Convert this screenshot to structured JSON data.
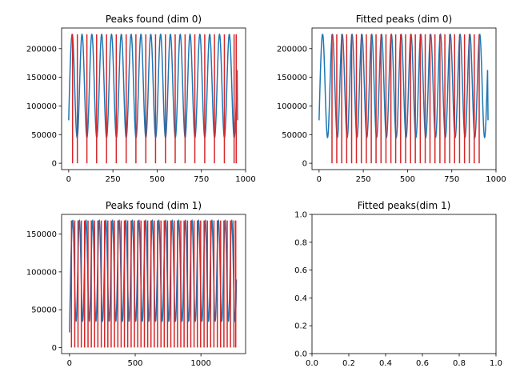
{
  "chart_data": [
    {
      "type": "line",
      "title": "Peaks found (dim 0)",
      "xlim": [
        -40,
        1000
      ],
      "ylim": [
        -11000,
        236000
      ],
      "xticks": [
        0,
        250,
        500,
        750,
        1000
      ],
      "xtick_labels": [
        "0",
        "250",
        "500",
        "750",
        "1000"
      ],
      "yticks": [
        0,
        50000,
        100000,
        150000,
        200000
      ],
      "ytick_labels": [
        "0",
        "50000",
        "100000",
        "150000",
        "200000"
      ],
      "signal": {
        "name": "signal",
        "color": "#1f77b4",
        "x_start": 0,
        "x_end": 955,
        "y_min": 45000,
        "y_max": 225000,
        "y_start": 75000,
        "y_end": 75000,
        "period": 55.5,
        "phase": 20
      },
      "peaks": {
        "name": "peaks",
        "color": "#d62728",
        "x": [
          22,
          49,
          103,
          158,
          214,
          269,
          325,
          380,
          436,
          491,
          547,
          602,
          658,
          713,
          769,
          824,
          880,
          935,
          947
        ],
        "y_top": 225000,
        "y_bottom": 0
      }
    },
    {
      "type": "line",
      "title": "Fitted peaks (dim 0)",
      "xlim": [
        -40,
        1000
      ],
      "ylim": [
        -11000,
        236000
      ],
      "xticks": [
        0,
        250,
        500,
        750,
        1000
      ],
      "xtick_labels": [
        "0",
        "250",
        "500",
        "750",
        "1000"
      ],
      "yticks": [
        0,
        50000,
        100000,
        150000,
        200000
      ],
      "ytick_labels": [
        "0",
        "50000",
        "100000",
        "150000",
        "200000"
      ],
      "signal": {
        "name": "signal",
        "color": "#1f77b4",
        "x_start": 0,
        "x_end": 955,
        "y_min": 45000,
        "y_max": 225000,
        "y_start": 75000,
        "y_end": 75000,
        "period": 55.5,
        "phase": 20
      },
      "peaks": {
        "name": "fitted-peaks",
        "color": "#d62728",
        "x": [
          73,
          100,
          128,
          156,
          184,
          211,
          239,
          267,
          295,
          322,
          350,
          378,
          406,
          433,
          461,
          489,
          517,
          544,
          572,
          600,
          627,
          655,
          683,
          711,
          738,
          766,
          794,
          822,
          849,
          877,
          905
        ],
        "y_top": 225000,
        "y_bottom": 0
      }
    },
    {
      "type": "line",
      "title": "Peaks found (dim 1)",
      "xlim": [
        -60,
        1340
      ],
      "ylim": [
        -8000,
        176000
      ],
      "xticks": [
        0,
        500,
        1000
      ],
      "xtick_labels": [
        "0",
        "500",
        "1000"
      ],
      "yticks": [
        0,
        50000,
        100000,
        150000
      ],
      "ytick_labels": [
        "0",
        "50000",
        "100000",
        "150000"
      ],
      "signal": {
        "name": "signal",
        "color": "#1f77b4",
        "x_start": 0,
        "x_end": 1270,
        "y_min": 35000,
        "y_max": 168000,
        "y_start": 20000,
        "y_end": 90000,
        "period": 50.4,
        "phase": 25
      },
      "peaks": {
        "name": "peaks",
        "color": "#d62728",
        "x": [
          15,
          40,
          65,
          90,
          115,
          141,
          166,
          191,
          216,
          242,
          267,
          292,
          317,
          342,
          368,
          393,
          418,
          443,
          469,
          494,
          519,
          544,
          570,
          595,
          620,
          645,
          670,
          696,
          721,
          746,
          771,
          797,
          822,
          847,
          872,
          898,
          923,
          948,
          973,
          998,
          1024,
          1049,
          1074,
          1099,
          1125,
          1150,
          1175,
          1200,
          1225,
          1251,
          1265
        ],
        "y_top": 168000,
        "y_bottom": 0
      }
    },
    {
      "type": "line",
      "title": "Fitted peaks(dim 1)",
      "xlim": [
        0,
        1
      ],
      "ylim": [
        0,
        1
      ],
      "xticks": [
        0,
        0.2,
        0.4,
        0.6,
        0.8,
        1.0
      ],
      "xtick_labels": [
        "0.0",
        "0.2",
        "0.4",
        "0.6",
        "0.8",
        "1.0"
      ],
      "yticks": [
        0,
        0.2,
        0.4,
        0.6,
        0.8,
        1.0
      ],
      "ytick_labels": [
        "0.0",
        "0.2",
        "0.4",
        "0.6",
        "0.8",
        "1.0"
      ],
      "signal": null,
      "peaks": null
    }
  ]
}
